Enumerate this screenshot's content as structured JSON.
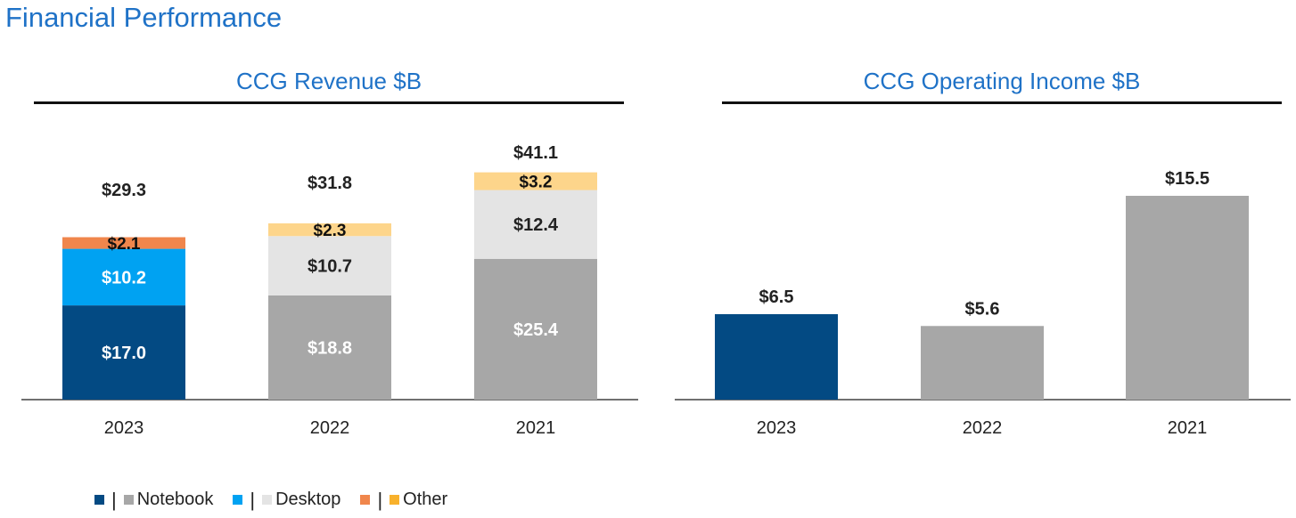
{
  "page_title": "Financial Performance",
  "colors": {
    "title_blue": "#1f72c7",
    "notebook_2023": "#034a83",
    "desktop_2023": "#00a2f2",
    "other_2023": "#f0864c",
    "notebook_prior": "#a7a7a7",
    "desktop_prior": "#e4e4e4",
    "other_prior": "#fdd58b",
    "legend_other_prior": "#f8b12c"
  },
  "legend": {
    "items": [
      {
        "label": "Notebook",
        "color_2023": "#034a83",
        "color_prior": "#a7a7a7"
      },
      {
        "label": "Desktop",
        "color_2023": "#00a2f2",
        "color_prior": "#e4e4e4"
      },
      {
        "label": "Other",
        "color_2023": "#f0864c",
        "color_prior": "#f8b12c"
      }
    ],
    "separator": "|"
  },
  "chart_data": [
    {
      "type": "bar",
      "stacked": true,
      "title": "CCG Revenue $B",
      "categories": [
        "2023",
        "2022",
        "2021"
      ],
      "series": [
        {
          "name": "Notebook",
          "values": [
            17.0,
            18.8,
            25.4
          ],
          "labels": [
            "$17.0",
            "$18.8",
            "$25.4"
          ],
          "colors": [
            "#034a83",
            "#a7a7a7",
            "#a7a7a7"
          ],
          "label_colors": [
            "#ffffff",
            "#ffffff",
            "#ffffff"
          ]
        },
        {
          "name": "Desktop",
          "values": [
            10.2,
            10.7,
            12.4
          ],
          "labels": [
            "$10.2",
            "$10.7",
            "$12.4"
          ],
          "colors": [
            "#00a2f2",
            "#e4e4e4",
            "#e4e4e4"
          ],
          "label_colors": [
            "#ffffff",
            "#222222",
            "#222222"
          ]
        },
        {
          "name": "Other",
          "values": [
            2.1,
            2.3,
            3.2
          ],
          "labels": [
            "$2.1",
            "$2.3",
            "$3.2"
          ],
          "colors": [
            "#f0864c",
            "#fdd58b",
            "#fdd58b"
          ],
          "label_colors": [
            "#111111",
            "#111111",
            "#111111"
          ]
        }
      ],
      "totals": [
        29.3,
        31.8,
        41.1
      ],
      "total_labels": [
        "$29.3",
        "$31.8",
        "$41.1"
      ],
      "ylim": [
        0,
        41.1
      ],
      "xlabel": "",
      "ylabel": "",
      "grid": false
    },
    {
      "type": "bar",
      "title": "CCG Operating Income $B",
      "categories": [
        "2023",
        "2022",
        "2021"
      ],
      "values": [
        6.5,
        5.6,
        15.5
      ],
      "labels": [
        "$6.5",
        "$5.6",
        "$15.5"
      ],
      "colors": [
        "#034a83",
        "#a7a7a7",
        "#a7a7a7"
      ],
      "ylim": [
        0,
        15.5
      ],
      "xlabel": "",
      "ylabel": "",
      "grid": false
    }
  ]
}
